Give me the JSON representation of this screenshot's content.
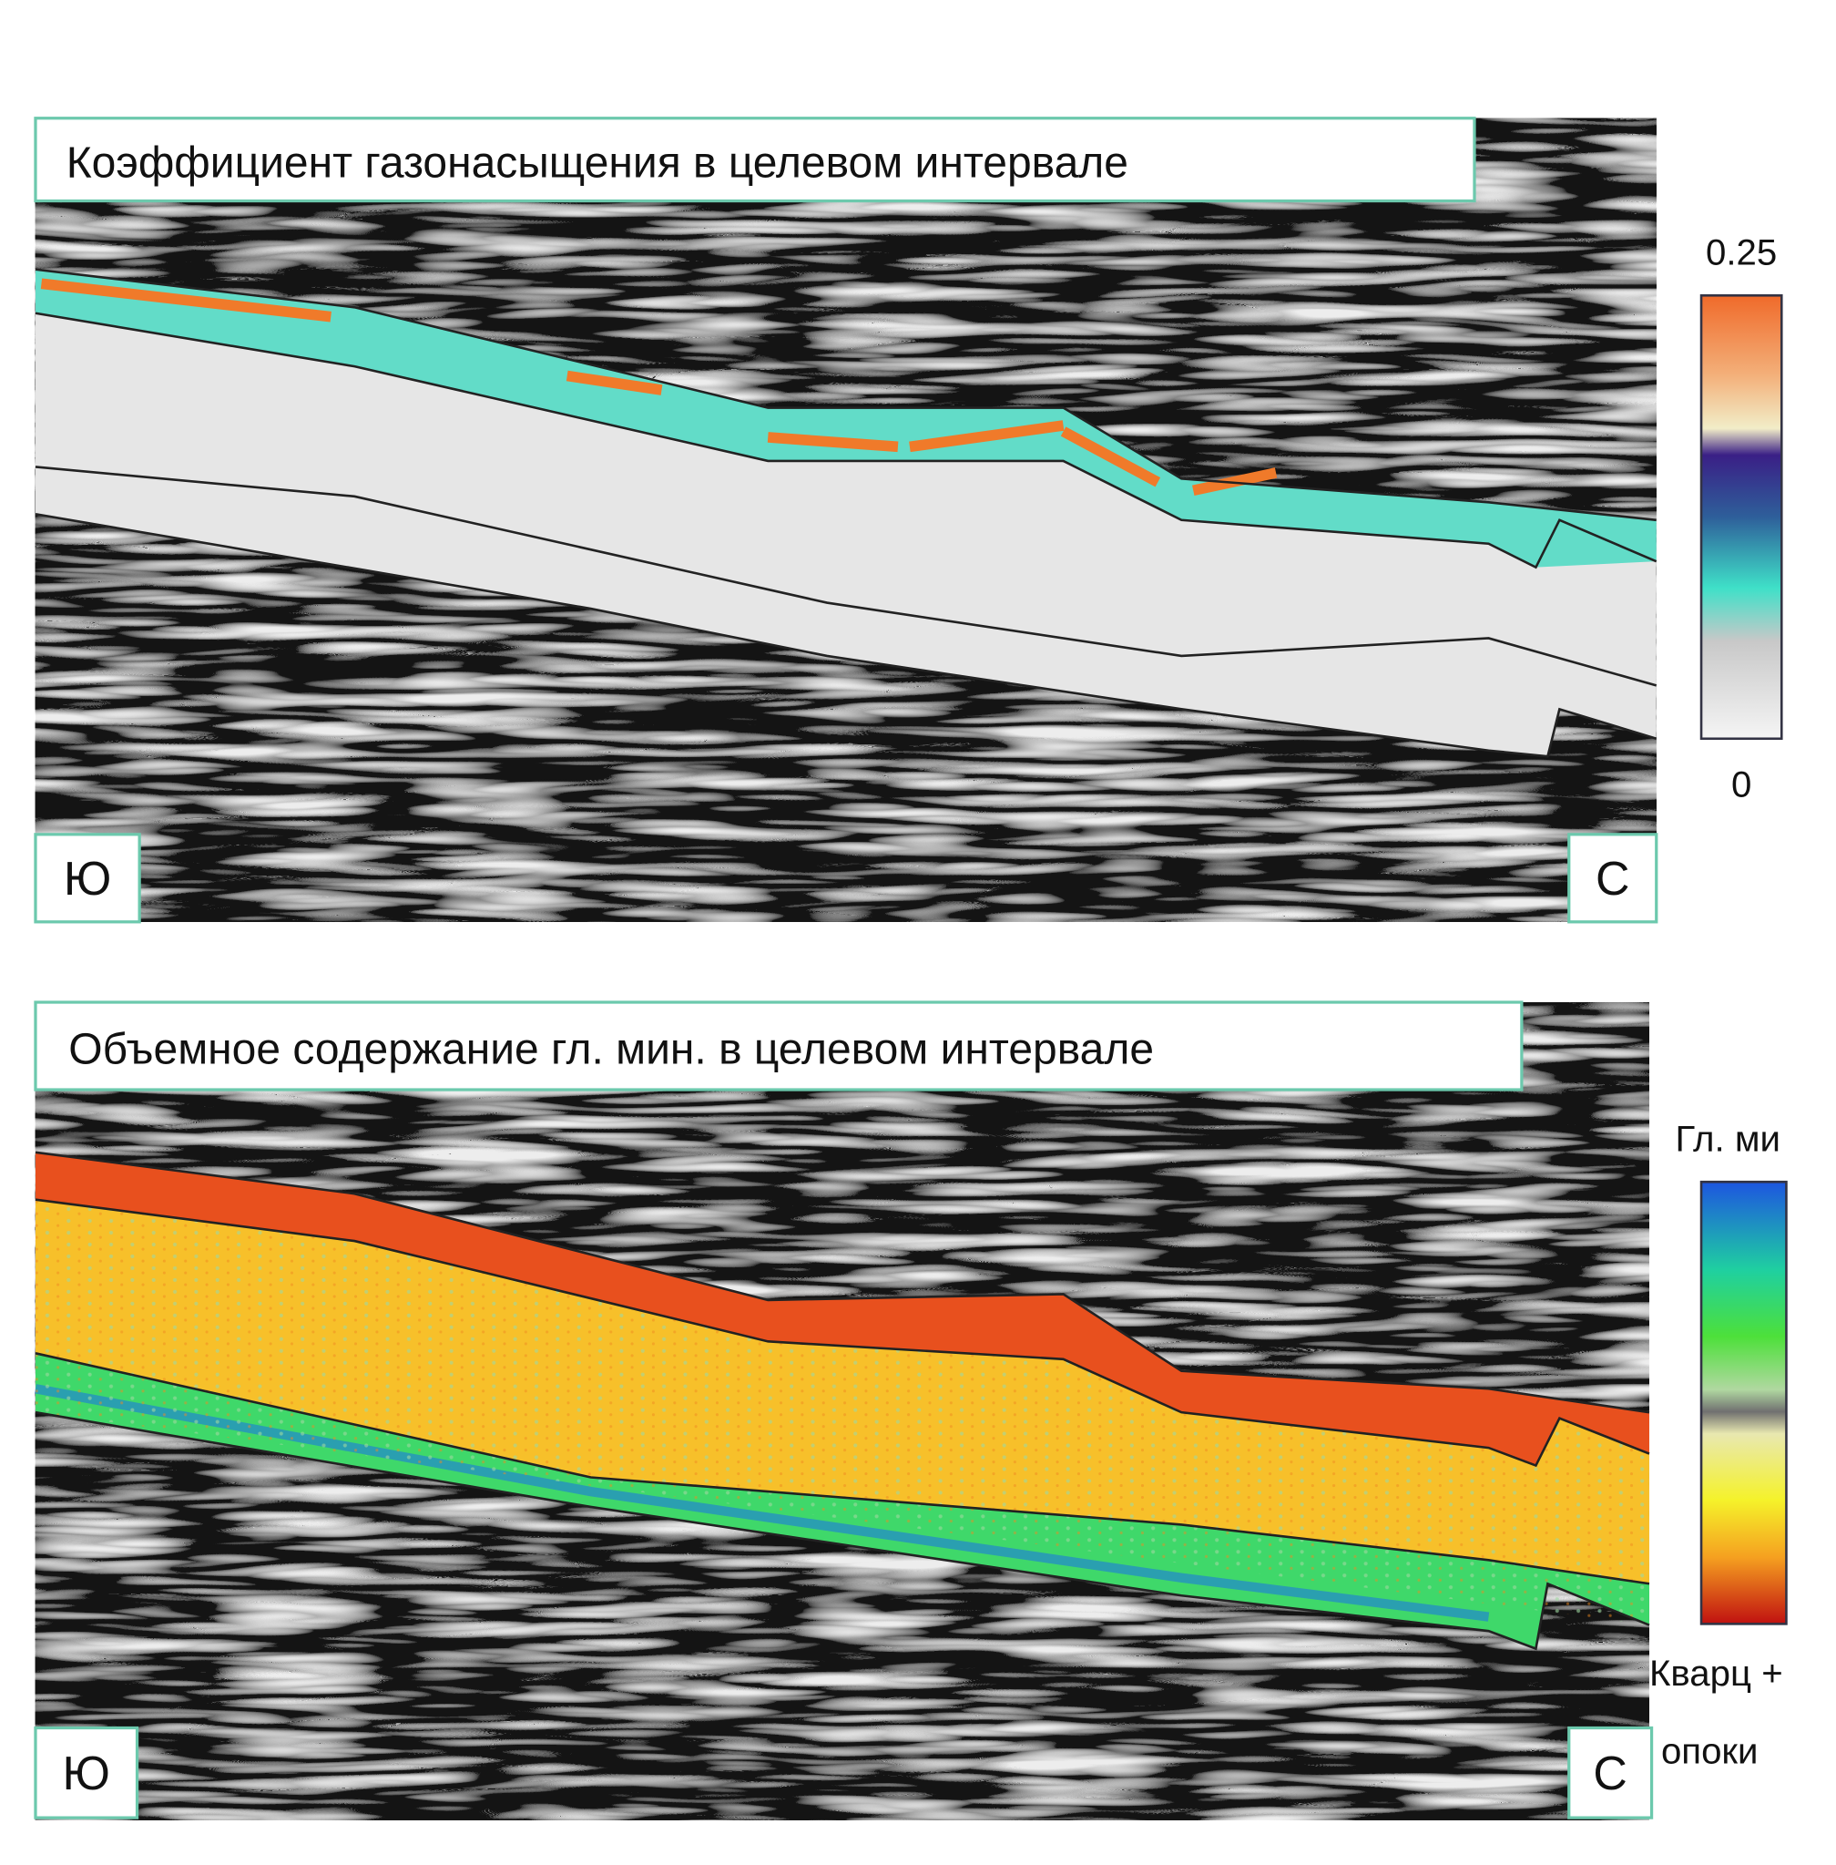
{
  "panels": [
    {
      "title": "Коэффициент газонасыщения в целевом интервале",
      "left_label": "Ю",
      "right_label": "С",
      "colorbar": {
        "max": 0.25,
        "min": 0
      }
    },
    {
      "title": "Объемное содержание гл. мин. в целевом интервале",
      "left_label": "Ю",
      "right_label": "С",
      "colorbar": {
        "top_label": "Гл. ми",
        "bottom_label_1": "Кварц +",
        "bottom_label_2": "опоки"
      }
    }
  ]
}
